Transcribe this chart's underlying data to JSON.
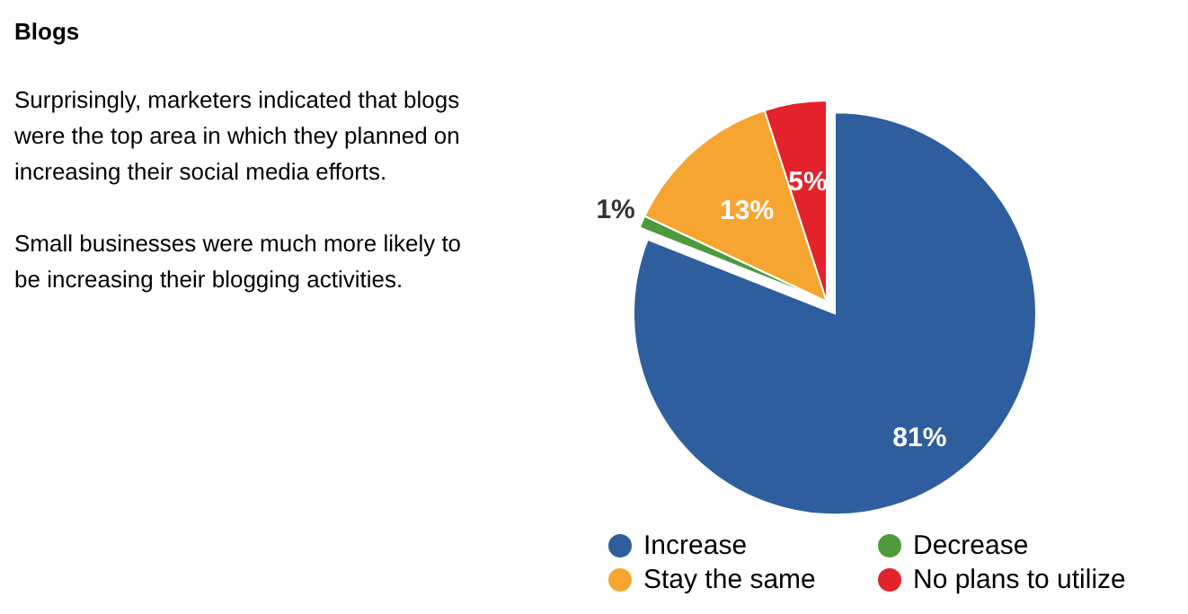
{
  "chart_data": {
    "type": "pie",
    "title": "Blogs",
    "annotations": [
      "Surprisingly, marketers indicated that blogs were the top area in which they planned on increasing their social media efforts.",
      "Small businesses were much more likely to be increasing their blogging activities."
    ],
    "categories": [
      "Increase",
      "Decrease",
      "Stay the same",
      "No plans to utilize"
    ],
    "values": [
      81,
      1,
      13,
      5
    ],
    "colors": [
      "#2e5e9e",
      "#4c9a3c",
      "#f7a531",
      "#e3222b"
    ],
    "value_labels": [
      "81%",
      "1%",
      "13%",
      "5%"
    ],
    "legend": "bottom"
  }
}
